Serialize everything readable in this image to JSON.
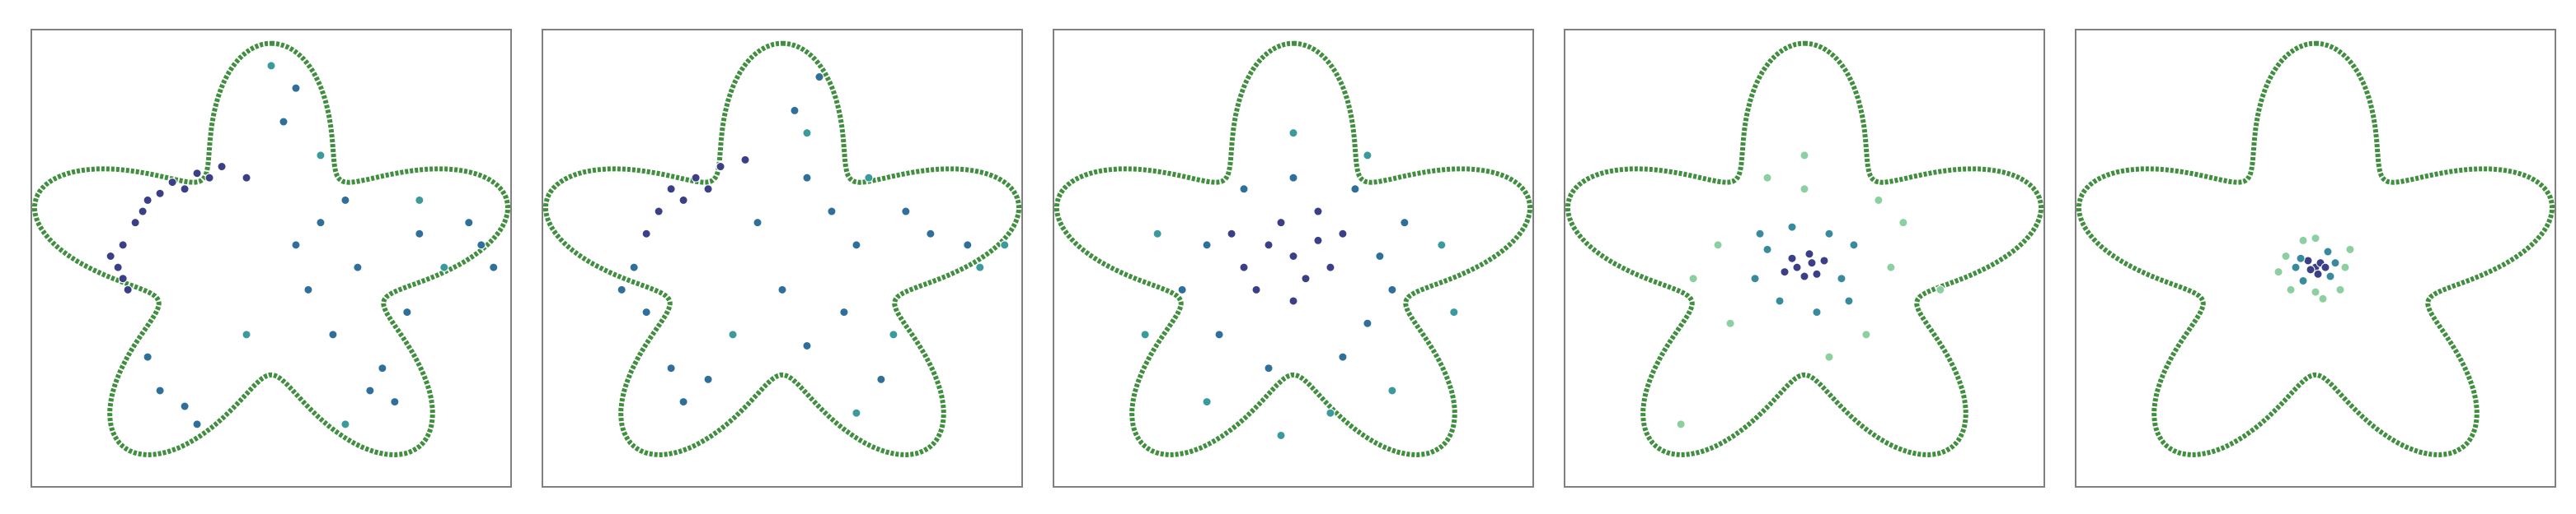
{
  "chart_data": [
    {
      "type": "scatter",
      "xlim": [
        -1,
        1
      ],
      "ylim": [
        -1,
        1
      ],
      "series": [
        {
          "color": "#3a3f86",
          "x": [
            -0.55,
            -0.6,
            -0.62,
            -0.58,
            -0.5,
            -0.4,
            -0.3,
            -0.2,
            -0.1,
            -0.65,
            -0.45,
            -0.35,
            -0.52,
            -0.6,
            -0.25
          ],
          "y": [
            0.2,
            0.1,
            0.0,
            -0.1,
            0.3,
            0.38,
            0.42,
            0.45,
            0.4,
            0.05,
            0.33,
            0.35,
            0.25,
            -0.05,
            0.4
          ]
        },
        {
          "color": "#2f6f9a",
          "x": [
            -0.45,
            -0.35,
            -0.3,
            0.4,
            0.5,
            0.45,
            0.2,
            0.15,
            0.25,
            0.85,
            0.9,
            0.8,
            0.1,
            0.05,
            0.3,
            0.35,
            -0.5,
            0.1,
            0.6,
            0.55
          ],
          "y": [
            -0.55,
            -0.62,
            -0.7,
            -0.55,
            -0.6,
            -0.45,
            0.2,
            -0.1,
            -0.3,
            0.1,
            0.0,
            0.2,
            0.8,
            0.65,
            0.3,
            0.0,
            -0.4,
            0.1,
            0.15,
            -0.2
          ]
        },
        {
          "color": "#3a9a9c",
          "x": [
            0.0,
            0.2,
            0.7,
            -0.1,
            0.3,
            0.6
          ],
          "y": [
            0.9,
            0.5,
            0.0,
            -0.3,
            -0.7,
            0.3
          ]
        }
      ]
    },
    {
      "type": "scatter",
      "xlim": [
        -1,
        1
      ],
      "ylim": [
        -1,
        1
      ],
      "series": [
        {
          "color": "#3a3f86",
          "x": [
            -0.45,
            -0.35,
            -0.25,
            -0.5,
            -0.55,
            -0.15,
            -0.4,
            -0.3
          ],
          "y": [
            0.35,
            0.4,
            0.45,
            0.25,
            0.15,
            0.48,
            0.3,
            0.35
          ]
        },
        {
          "color": "#2f6f9a",
          "x": [
            -0.6,
            -0.55,
            -0.45,
            -0.4,
            -0.3,
            0.1,
            0.2,
            0.3,
            0.25,
            0.1,
            0.4,
            0.6,
            0.75,
            0.05,
            0.15,
            -0.1,
            0.0,
            -0.65,
            0.5
          ],
          "y": [
            0.0,
            -0.2,
            -0.45,
            -0.6,
            -0.5,
            0.4,
            0.25,
            0.1,
            -0.2,
            -0.35,
            -0.5,
            0.15,
            0.1,
            0.7,
            0.85,
            0.2,
            -0.1,
            -0.1,
            0.25
          ]
        },
        {
          "color": "#3a9a9c",
          "x": [
            0.8,
            0.9,
            0.45,
            0.3,
            -0.2,
            0.35,
            0.1
          ],
          "y": [
            0.0,
            0.1,
            -0.3,
            -0.65,
            -0.3,
            0.4,
            0.6
          ]
        }
      ]
    },
    {
      "type": "scatter",
      "xlim": [
        -1,
        1
      ],
      "ylim": [
        -1,
        1
      ],
      "series": [
        {
          "color": "#3a3f86",
          "x": [
            -0.1,
            0.0,
            0.1,
            -0.2,
            0.05,
            -0.05,
            0.15,
            -0.15,
            0.2,
            0.0,
            -0.25,
            0.1
          ],
          "y": [
            0.1,
            0.05,
            0.12,
            0.0,
            -0.05,
            0.2,
            0.0,
            -0.1,
            0.15,
            -0.15,
            0.15,
            0.25
          ]
        },
        {
          "color": "#2f6f9a",
          "x": [
            -0.35,
            0.35,
            0.3,
            -0.3,
            0.0,
            0.2,
            -0.1,
            0.45,
            -0.45,
            0.4,
            -0.2,
            0.25
          ],
          "y": [
            0.1,
            0.05,
            -0.25,
            -0.3,
            0.4,
            -0.4,
            -0.45,
            0.2,
            -0.1,
            -0.1,
            0.35,
            0.35
          ]
        },
        {
          "color": "#3a9a9c",
          "x": [
            0.0,
            -0.55,
            0.6,
            -0.35,
            0.4,
            0.15,
            -0.6,
            0.65,
            -0.05,
            0.3
          ],
          "y": [
            0.6,
            0.15,
            0.1,
            -0.6,
            -0.55,
            -0.65,
            -0.3,
            -0.2,
            -0.75,
            0.5
          ]
        }
      ]
    },
    {
      "type": "scatter",
      "xlim": [
        -1,
        1
      ],
      "ylim": [
        -1,
        1
      ],
      "series": [
        {
          "color": "#3a3f86",
          "x": [
            -0.03,
            0.03,
            0.0,
            0.05,
            -0.05,
            0.02,
            -0.08,
            0.08
          ],
          "y": [
            0.0,
            0.02,
            -0.04,
            -0.03,
            0.04,
            0.06,
            -0.02,
            0.03
          ]
        },
        {
          "color": "#3a8a9e",
          "x": [
            -0.15,
            0.15,
            0.1,
            -0.1,
            0.2,
            -0.2,
            0.05,
            -0.05,
            0.18,
            -0.18
          ],
          "y": [
            0.08,
            -0.05,
            0.15,
            -0.15,
            0.1,
            -0.05,
            -0.2,
            0.18,
            -0.15,
            0.15
          ]
        },
        {
          "color": "#8ccfa0",
          "x": [
            -0.35,
            0.35,
            0.25,
            -0.3,
            0.0,
            0.1,
            -0.15,
            0.4,
            -0.45,
            0.3,
            -0.5,
            0.0,
            0.55
          ],
          "y": [
            0.1,
            0.0,
            -0.3,
            -0.25,
            0.35,
            -0.4,
            0.4,
            0.2,
            -0.05,
            0.3,
            -0.7,
            0.5,
            -0.1
          ]
        }
      ]
    },
    {
      "type": "scatter",
      "xlim": [
        -1,
        1
      ],
      "ylim": [
        -1,
        1
      ],
      "series": [
        {
          "color": "#3a3f86",
          "x": [
            0.0,
            0.02,
            -0.02,
            0.01,
            -0.03,
            0.04
          ],
          "y": [
            0.0,
            0.02,
            -0.01,
            -0.03,
            0.03,
            0.0
          ]
        },
        {
          "color": "#3a8a9e",
          "x": [
            -0.06,
            0.06,
            0.05,
            -0.05,
            0.08,
            -0.08
          ],
          "y": [
            0.04,
            -0.04,
            0.07,
            -0.06,
            0.02,
            0.0
          ]
        },
        {
          "color": "#8ccfa0",
          "x": [
            -0.12,
            0.12,
            0.1,
            -0.1,
            0.0,
            0.03,
            -0.05,
            0.14,
            -0.15,
            0.0
          ],
          "y": [
            0.05,
            0.0,
            -0.1,
            -0.1,
            0.13,
            -0.14,
            0.12,
            0.08,
            -0.02,
            -0.11
          ]
        }
      ]
    }
  ]
}
